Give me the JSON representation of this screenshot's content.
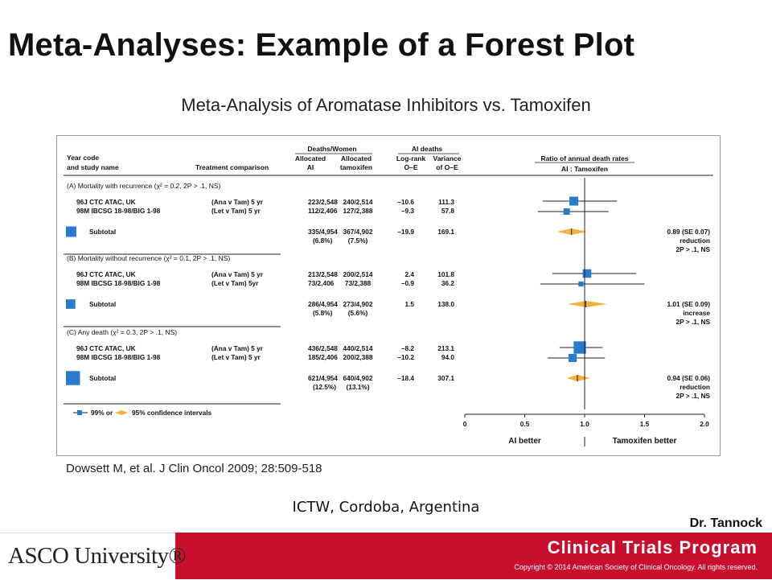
{
  "slide": {
    "title": "Meta-Analyses: Example of a Forest Plot",
    "subtitle": "Meta-Analysis of Aromatase Inhibitors vs. Tamoxifen",
    "citation": "Dowsett M, et al. J Clin Oncol 2009; 28:509-518",
    "conference": "ICTW, Cordoba, Argentina",
    "presenter": "Dr. Tannock"
  },
  "footer": {
    "logo_text": "ASCO University®",
    "program": "Clinical Trials Program",
    "copyright": "Copyright © 2014 American Society of Clinical Oncology. All rights reserved.",
    "bar_color": "#c8102e"
  },
  "chart_data": {
    "type": "forest",
    "headers": {
      "year_code": "Year code",
      "study_name": "and study name",
      "treatment": "Treatment comparison",
      "deaths_women": "Deaths/Women",
      "allocated_ai_1": "Allocated",
      "allocated_ai_2": "AI",
      "allocated_tam_1": "Allocated",
      "allocated_tam_2": "tamoxifen",
      "ai_deaths": "AI deaths",
      "logrank_1": "Log-rank",
      "logrank_2": "O–E",
      "variance_1": "Variance",
      "variance_2": "of O–E",
      "ratio_1": "Ratio of annual death rates",
      "ratio_2": "AI : Tamoxifen"
    },
    "groups": [
      {
        "label": "(A) Mortality with recurrence (χ² = 0.2, 2P > .1, NS)",
        "studies": [
          {
            "name": "96J CTC ATAC, UK",
            "treatment": "(Ana v Tam) 5 yr",
            "ai": "223/2,548",
            "tam": "240/2,514",
            "oe": "–10.6",
            "var": "111.3",
            "ratio": 0.91,
            "ci99": [
              0.65,
              1.27
            ],
            "size": 111.3
          },
          {
            "name": "98M IBCSG 18-98/BIG 1-98",
            "treatment": "(Let v Tam) 5 yr",
            "ai": "112/2,406",
            "tam": "127/2,388",
            "oe": "–9.3",
            "var": "57.8",
            "ratio": 0.85,
            "ci99": [
              0.61,
              1.2
            ],
            "size": 57.8
          }
        ],
        "subtotal": {
          "label": "Subtotal",
          "ai": "335/4,954",
          "ai_pct": "(6.8%)",
          "tam": "367/4,902",
          "tam_pct": "(7.5%)",
          "oe": "–19.9",
          "var": "169.1",
          "ratio": 0.89,
          "ci95": [
            0.77,
            1.02
          ],
          "size": 169.1,
          "summary_1": "0.89 (SE 0.07)",
          "summary_2": "reduction",
          "summary_3": "2P > .1, NS"
        }
      },
      {
        "label": "(B) Mortality without recurrence (χ² = 0.1, 2P > .1, NS)",
        "studies": [
          {
            "name": "96J CTC ATAC, UK",
            "treatment": "(Ana v Tam) 5 yr",
            "ai": "213/2,548",
            "tam": "200/2,514",
            "oe": "2.4",
            "var": "101.8",
            "ratio": 1.02,
            "ci99": [
              0.73,
              1.43
            ],
            "size": 101.8
          },
          {
            "name": "98M IBCSG 18-98/BIG 1-98",
            "treatment": "(Let v Tam) 5yr",
            "ai": "73/2,406",
            "tam": "73/2,388",
            "oe": "–0.9",
            "var": "36.2",
            "ratio": 0.97,
            "ci99": [
              0.63,
              1.5
            ],
            "size": 36.2
          }
        ],
        "subtotal": {
          "label": "Subtotal",
          "ai": "286/4,954",
          "ai_pct": "(5.8%)",
          "tam": "273/4,902",
          "tam_pct": "(5.6%)",
          "oe": "1.5",
          "var": "138.0",
          "ratio": 1.01,
          "ci95": [
            0.86,
            1.19
          ],
          "size": 138.0,
          "summary_1": "1.01 (SE 0.09)",
          "summary_2": "increase",
          "summary_3": "2P > .1, NS"
        }
      },
      {
        "label": "(C) Any death (χ² = 0.3, 2P > .1, NS)",
        "studies": [
          {
            "name": "96J CTC ATAC, UK",
            "treatment": "(Ana v Tam) 5 yr",
            "ai": "436/2,548",
            "tam": "440/2,514",
            "oe": "–8.2",
            "var": "213.1",
            "ratio": 0.96,
            "ci99": [
              0.79,
              1.15
            ],
            "size": 213.1
          },
          {
            "name": "98M IBCSG 18-98/BIG 1-98",
            "treatment": "(Let v Tam) 5 yr",
            "ai": "185/2,406",
            "tam": "200/2,388",
            "oe": "–10.2",
            "var": "94.0",
            "ratio": 0.9,
            "ci99": [
              0.69,
              1.17
            ],
            "size": 94.0
          }
        ],
        "subtotal": {
          "label": "Subtotal",
          "ai": "621/4,954",
          "ai_pct": "(12.5%)",
          "tam": "640/4,902",
          "tam_pct": "(13.1%)",
          "oe": "–18.4",
          "var": "307.1",
          "ratio": 0.94,
          "ci95": [
            0.85,
            1.05
          ],
          "size": 307.1,
          "summary_1": "0.94 (SE 0.06)",
          "summary_2": "reduction",
          "summary_3": "2P > .1, NS"
        }
      }
    ],
    "legend": {
      "ci99_label": "99% or",
      "ci95_label": "95% confidence intervals"
    },
    "x_axis": {
      "ticks": [
        0,
        0.5,
        1.0,
        1.5,
        2.0
      ],
      "tick_labels": [
        "0",
        "0.5",
        "1.0",
        "1.5",
        "2.0"
      ],
      "xlim": [
        0,
        2.0
      ],
      "left_label": "AI better",
      "right_label": "Tamoxifen better"
    },
    "colors": {
      "box": "#2b7bcc",
      "diamond": "#f3b23a",
      "line": "#222222"
    }
  }
}
